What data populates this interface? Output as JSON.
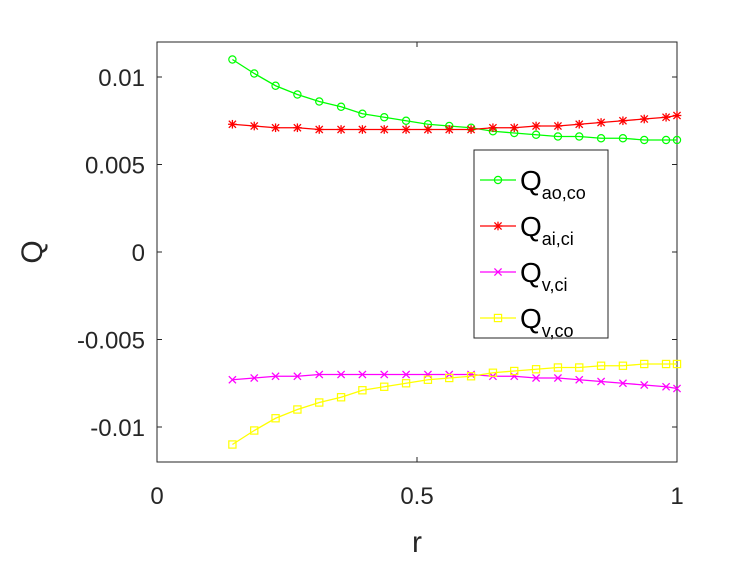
{
  "chart_data": {
    "type": "line",
    "title": "",
    "xlabel": "r",
    "ylabel": "Q",
    "xlim": [
      0,
      1
    ],
    "ylim": [
      -0.012,
      0.012
    ],
    "xticks": [
      0,
      0.5,
      1
    ],
    "xtick_labels": [
      "0",
      "0.5",
      "1"
    ],
    "yticks": [
      -0.01,
      -0.005,
      0,
      0.005,
      0.01
    ],
    "ytick_labels": [
      "-0.01",
      "-0.005",
      "0",
      "0.005",
      "0.01"
    ],
    "grid": false,
    "legend_position": "right",
    "x": [
      0.145,
      0.187,
      0.228,
      0.27,
      0.312,
      0.354,
      0.395,
      0.437,
      0.479,
      0.521,
      0.562,
      0.604,
      0.646,
      0.687,
      0.729,
      0.771,
      0.812,
      0.854,
      0.896,
      0.937,
      0.979,
      1.0
    ],
    "series": [
      {
        "name": "Q",
        "subscript": "ao,co",
        "color": "#00ff00",
        "marker": "circle",
        "values": [
          0.011,
          0.0102,
          0.0095,
          0.009,
          0.0086,
          0.0083,
          0.0079,
          0.0077,
          0.0075,
          0.0073,
          0.0072,
          0.0071,
          0.0069,
          0.0068,
          0.0067,
          0.0066,
          0.0066,
          0.0065,
          0.0065,
          0.0064,
          0.0064,
          0.0064
        ]
      },
      {
        "name": "Q",
        "subscript": "ai,ci",
        "color": "#ff0000",
        "marker": "asterisk",
        "values": [
          0.0073,
          0.0072,
          0.0071,
          0.0071,
          0.007,
          0.007,
          0.007,
          0.007,
          0.007,
          0.007,
          0.007,
          0.007,
          0.0071,
          0.0071,
          0.0072,
          0.0072,
          0.0073,
          0.0074,
          0.0075,
          0.0076,
          0.0077,
          0.0078
        ]
      },
      {
        "name": "Q",
        "subscript": "v,ci",
        "color": "#ff00ff",
        "marker": "x",
        "values": [
          -0.0073,
          -0.0072,
          -0.0071,
          -0.0071,
          -0.007,
          -0.007,
          -0.007,
          -0.007,
          -0.007,
          -0.007,
          -0.007,
          -0.007,
          -0.0071,
          -0.0071,
          -0.0072,
          -0.0072,
          -0.0073,
          -0.0074,
          -0.0075,
          -0.0076,
          -0.0077,
          -0.0078
        ]
      },
      {
        "name": "Q",
        "subscript": "v,co",
        "color": "#ffff00",
        "marker": "square",
        "values": [
          -0.011,
          -0.0102,
          -0.0095,
          -0.009,
          -0.0086,
          -0.0083,
          -0.0079,
          -0.0077,
          -0.0075,
          -0.0073,
          -0.0072,
          -0.0071,
          -0.0069,
          -0.0068,
          -0.0067,
          -0.0066,
          -0.0066,
          -0.0065,
          -0.0065,
          -0.0064,
          -0.0064,
          -0.0064
        ]
      }
    ]
  }
}
